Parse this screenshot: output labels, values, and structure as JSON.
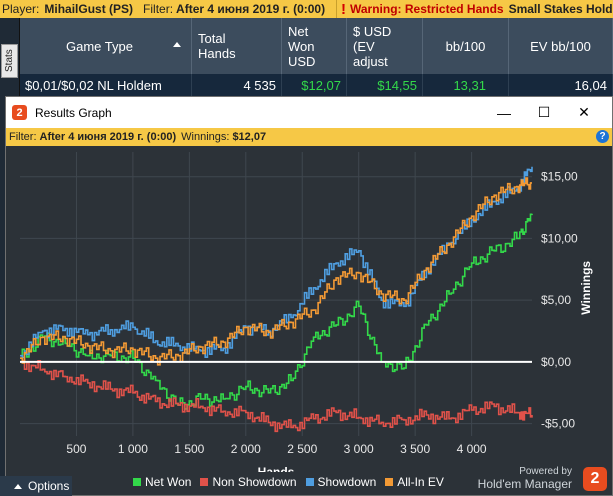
{
  "filter_bar": {
    "player_label": "Player:",
    "player": "MihailGust (PS)",
    "filter_label": "Filter:",
    "filter": "After 4 июня 2019 г. (0:00)",
    "warning_icon": "warning-icon",
    "warning": "Warning: Restricted Hands",
    "extra": "Small Stakes Holdem"
  },
  "sidebar": {
    "tab_label": "Stats"
  },
  "table": {
    "headers": [
      "Game Type",
      "Total Hands",
      "Net Won USD",
      "$ USD (EV adjust",
      "bb/100",
      "EV bb/100"
    ],
    "rows": [
      [
        "$0,01/$0,02 NL Holdem",
        "4 535",
        "$12,07",
        "$14,55",
        "13,31",
        "16,04"
      ]
    ]
  },
  "results_window": {
    "title": "Results Graph",
    "filter_label": "Filter:",
    "filter": "After 4 июня 2019 г. (0:00)",
    "winnings_label": "Winnings:",
    "winnings": "$12,07"
  },
  "chart_data": {
    "type": "line",
    "xlabel": "Hands",
    "ylabel": "Winnings",
    "xlim": [
      0,
      4535
    ],
    "ylim": [
      -6,
      17
    ],
    "x_ticks": [
      500,
      1000,
      1500,
      2000,
      2500,
      3000,
      3500,
      4000
    ],
    "x_tick_labels": [
      "500",
      "1 000",
      "1 500",
      "2 000",
      "2 500",
      "3 000",
      "3 500",
      "4 000"
    ],
    "y_ticks": [
      -5,
      0,
      5,
      10,
      15
    ],
    "y_tick_labels": [
      "-$5,00",
      "$0,00",
      "$5,00",
      "$10,00",
      "$15,00"
    ],
    "grid": true,
    "legend_position": "bottom",
    "x": [
      0,
      200,
      400,
      600,
      800,
      1000,
      1200,
      1400,
      1600,
      1800,
      2000,
      2200,
      2400,
      2600,
      2800,
      3000,
      3200,
      3400,
      3600,
      3800,
      4000,
      4200,
      4400,
      4535
    ],
    "series": [
      {
        "name": "Net Won",
        "color": "#33d94a",
        "values": [
          0.3,
          2.0,
          1.5,
          0.5,
          0.5,
          0.3,
          -1.5,
          -3.5,
          -3.0,
          -3.0,
          -2.0,
          -2.5,
          -1.5,
          2.0,
          3.0,
          4.5,
          0.0,
          -0.5,
          3.0,
          5.5,
          8.0,
          9.0,
          10.0,
          12.0
        ]
      },
      {
        "name": "Non Showdown",
        "color": "#e0524a",
        "values": [
          0,
          -0.6,
          -1.2,
          -1.7,
          -2.2,
          -2.5,
          -3.2,
          -3.5,
          -3.6,
          -4.0,
          -4.1,
          -4.9,
          -5.3,
          -4.6,
          -4.1,
          -4.5,
          -4.9,
          -4.7,
          -4.3,
          -4.6,
          -3.9,
          -3.6,
          -4.1,
          -4.3
        ]
      },
      {
        "name": "Showdown",
        "color": "#4f9ee0",
        "values": [
          0.5,
          2.5,
          2.7,
          2.2,
          2.6,
          2.8,
          1.7,
          1.3,
          0.9,
          1.1,
          2.8,
          2.5,
          3.6,
          6.0,
          8.0,
          9.0,
          5.0,
          4.5,
          7.5,
          9.5,
          11.5,
          13.0,
          14.0,
          15.8
        ]
      },
      {
        "name": "All-In EV",
        "color": "#f39a35",
        "values": [
          0.3,
          2.0,
          1.9,
          1.3,
          0.9,
          1.0,
          0.3,
          0.5,
          1.2,
          1.6,
          2.8,
          2.4,
          3.2,
          4.2,
          6.8,
          7.2,
          5.5,
          5.0,
          7.6,
          9.6,
          11.8,
          13.5,
          14.2,
          14.5
        ]
      }
    ]
  },
  "legend_items": [
    {
      "label": "Net Won",
      "color": "#33d94a"
    },
    {
      "label": "Non Showdown",
      "color": "#e0524a"
    },
    {
      "label": "Showdown",
      "color": "#4f9ee0"
    },
    {
      "label": "All-In EV",
      "color": "#f39a35"
    }
  ],
  "powered_by": {
    "line1": "Powered by",
    "line2": "Hold'em Manager",
    "logo_glyph": "2",
    "logo_icon": "hm-logo-icon"
  },
  "options": {
    "label": "Options"
  },
  "window_controls": {
    "minimize": "—",
    "maximize": "☐",
    "close": "✕"
  },
  "help_glyph": "?"
}
